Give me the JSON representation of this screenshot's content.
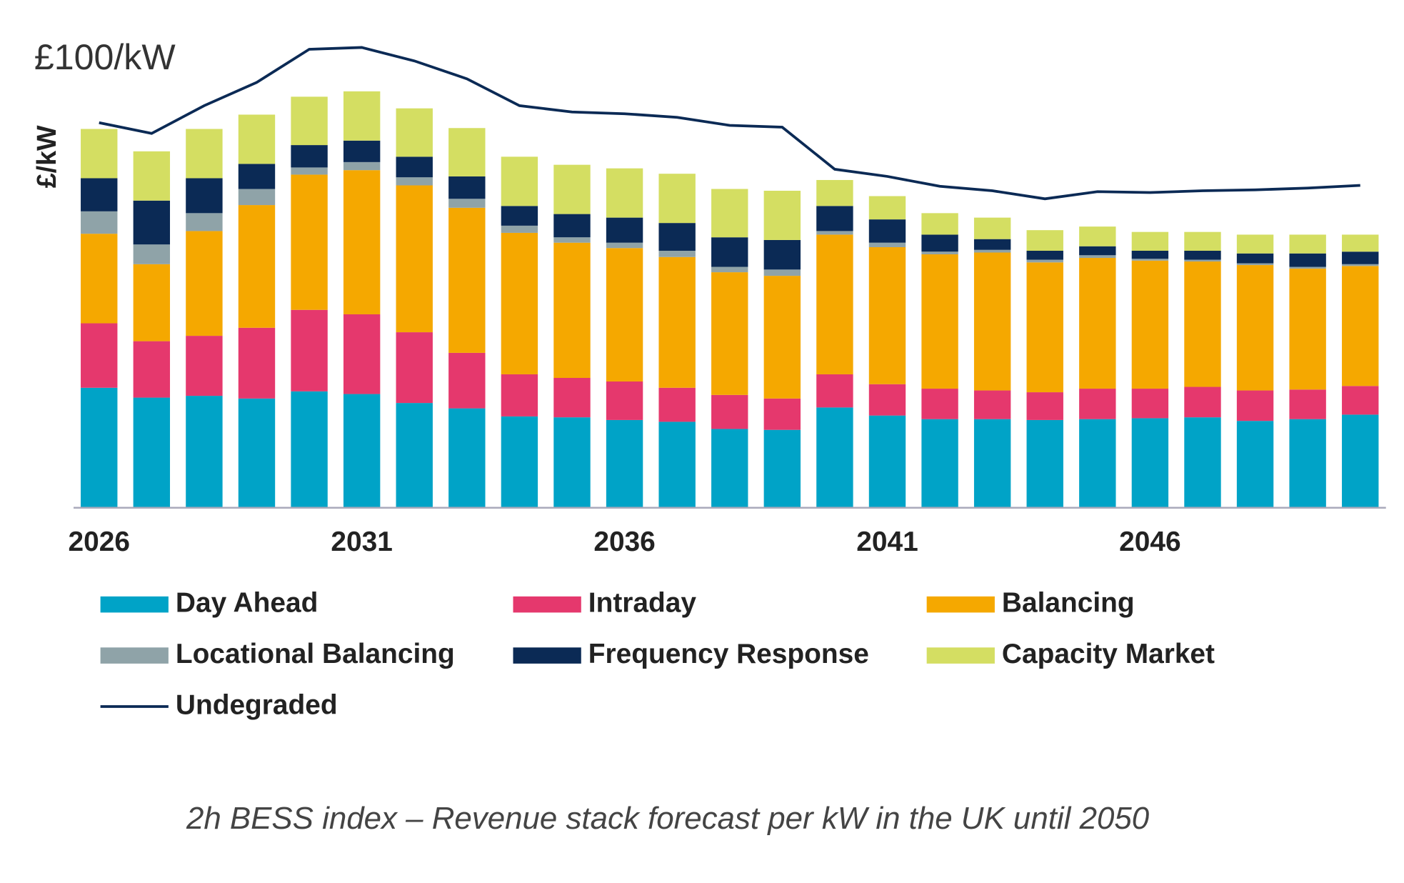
{
  "chart_data": {
    "type": "bar",
    "stacked": true,
    "caption": "2h BESS index – Revenue stack forecast per kW in the UK until 2050",
    "annotation": "£100/kW",
    "ylabel": "£/kW",
    "categories": [
      "2026",
      null,
      null,
      null,
      null,
      "2031",
      null,
      null,
      null,
      null,
      "2036",
      null,
      null,
      null,
      null,
      "2041",
      null,
      null,
      null,
      null,
      "2046",
      null,
      null,
      null,
      null
    ],
    "ylim": [
      0,
      110
    ],
    "series": [
      {
        "name": "Day Ahead",
        "color": "#00a3c7",
        "values": [
          26.8,
          24.6,
          25,
          24.4,
          26,
          25.4,
          23.4,
          22.2,
          20.4,
          20.2,
          19.6,
          19.2,
          17.6,
          17.4,
          22.4,
          20.6,
          19.8,
          19.8,
          19.6,
          19.8,
          20,
          20.2,
          19.4,
          19.8,
          20.8
        ]
      },
      {
        "name": "Intraday",
        "color": "#e5386d",
        "values": [
          14.4,
          12.6,
          13.4,
          15.8,
          18.2,
          17.8,
          15.8,
          12.4,
          9.4,
          8.8,
          8.6,
          7.6,
          7.6,
          7,
          7.4,
          7,
          6.8,
          6.4,
          6.2,
          6.8,
          6.6,
          6.8,
          6.8,
          6.6,
          6.4
        ]
      },
      {
        "name": "Balancing",
        "color": "#f5a800",
        "values": [
          20,
          17.2,
          23.4,
          27.4,
          30.2,
          32.2,
          32.8,
          32.4,
          31.6,
          30.2,
          29.8,
          29.2,
          27.4,
          27.4,
          31.2,
          30.6,
          30,
          30.8,
          29,
          29.2,
          28.6,
          28,
          28,
          27,
          26.8
        ]
      },
      {
        "name": "Locational Balancing",
        "color": "#8fa3a8",
        "values": [
          5,
          4.4,
          4,
          3.6,
          1.6,
          1.8,
          1.8,
          2,
          1.6,
          1.2,
          1.2,
          1.4,
          1.2,
          1.4,
          0.8,
          1,
          0.6,
          0.6,
          0.6,
          0.6,
          0.4,
          0.4,
          0.4,
          0.4,
          0.4
        ]
      },
      {
        "name": "Frequency Response",
        "color": "#0b2a55",
        "values": [
          7.4,
          9.8,
          7.8,
          5.6,
          5,
          4.8,
          4.6,
          5,
          4.4,
          5.2,
          5.6,
          6.2,
          6.6,
          6.6,
          5.6,
          5.2,
          3.8,
          2.4,
          2,
          2,
          1.8,
          2,
          2.2,
          3,
          2.8
        ]
      },
      {
        "name": "Capacity Market",
        "color": "#d4de62",
        "values": [
          11,
          11,
          11,
          11,
          10.8,
          11,
          10.8,
          10.8,
          11,
          11,
          11,
          11,
          10.8,
          11,
          5.8,
          5.2,
          4.8,
          4.8,
          4.6,
          4.4,
          4.2,
          4.2,
          4.2,
          4.2,
          3.8
        ]
      }
    ],
    "line_series": {
      "name": "Undegraded",
      "color": "#0b2a55",
      "values": [
        86,
        83.6,
        89.8,
        95,
        102.4,
        102.8,
        99.8,
        95.8,
        89.8,
        88.4,
        88,
        87.2,
        85.4,
        85,
        75.6,
        74,
        71.8,
        70.8,
        69,
        70.6,
        70.4,
        70.8,
        71,
        71.4,
        72
      ]
    }
  }
}
